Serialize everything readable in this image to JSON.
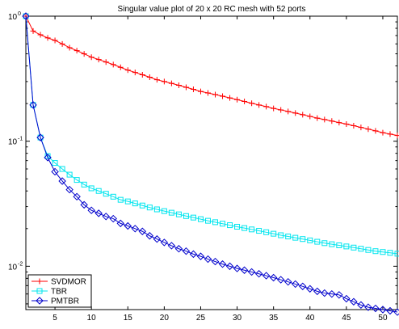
{
  "chart_data": {
    "type": "line",
    "title": "Singular value plot of 20 x 20 RC mesh with 52 ports",
    "xlabel": "",
    "ylabel": "",
    "xlim": [
      1,
      52
    ],
    "ylim": [
      0.0045,
      1
    ],
    "y_scale": "log",
    "grid": false,
    "legend_position": "bottom-left",
    "x_ticks": [
      5,
      10,
      15,
      20,
      25,
      30,
      35,
      40,
      45,
      50
    ],
    "y_ticks": [
      {
        "value": 0.01,
        "base": "10",
        "exp": "-2"
      },
      {
        "value": 0.1,
        "base": "10",
        "exp": "-1"
      },
      {
        "value": 1,
        "base": "10",
        "exp": "0"
      }
    ],
    "x": [
      1,
      2,
      3,
      4,
      5,
      6,
      7,
      8,
      9,
      10,
      11,
      12,
      13,
      14,
      15,
      16,
      17,
      18,
      19,
      20,
      21,
      22,
      23,
      24,
      25,
      26,
      27,
      28,
      29,
      30,
      31,
      32,
      33,
      34,
      35,
      36,
      37,
      38,
      39,
      40,
      41,
      42,
      43,
      44,
      45,
      46,
      47,
      48,
      49,
      50,
      51,
      52
    ],
    "series": [
      {
        "name": "SVDMOR",
        "color": "#ff0000",
        "marker": "plus",
        "values": [
          1.0,
          0.76,
          0.71,
          0.67,
          0.64,
          0.6,
          0.56,
          0.53,
          0.5,
          0.47,
          0.45,
          0.43,
          0.41,
          0.39,
          0.37,
          0.355,
          0.34,
          0.325,
          0.31,
          0.3,
          0.29,
          0.28,
          0.27,
          0.26,
          0.25,
          0.243,
          0.236,
          0.229,
          0.222,
          0.215,
          0.208,
          0.201,
          0.195,
          0.189,
          0.183,
          0.178,
          0.173,
          0.168,
          0.163,
          0.158,
          0.153,
          0.149,
          0.145,
          0.141,
          0.137,
          0.133,
          0.129,
          0.125,
          0.121,
          0.117,
          0.114,
          0.111
        ]
      },
      {
        "name": "TBR",
        "color": "#00e5ee",
        "marker": "square",
        "values": [
          1.0,
          0.195,
          0.107,
          0.076,
          0.067,
          0.06,
          0.054,
          0.049,
          0.045,
          0.042,
          0.04,
          0.038,
          0.036,
          0.034,
          0.033,
          0.0318,
          0.0306,
          0.0295,
          0.0285,
          0.0276,
          0.0268,
          0.026,
          0.0252,
          0.0245,
          0.0238,
          0.0231,
          0.0225,
          0.0219,
          0.0213,
          0.0207,
          0.0202,
          0.0197,
          0.0192,
          0.0187,
          0.0182,
          0.0177,
          0.0173,
          0.0169,
          0.0165,
          0.0161,
          0.0157,
          0.0153,
          0.015,
          0.0147,
          0.0144,
          0.0141,
          0.0138,
          0.0135,
          0.0132,
          0.013,
          0.0128,
          0.0126
        ]
      },
      {
        "name": "PMTBR",
        "color": "#0000cc",
        "marker": "diamond",
        "values": [
          1.0,
          0.195,
          0.107,
          0.074,
          0.057,
          0.048,
          0.041,
          0.036,
          0.031,
          0.028,
          0.0265,
          0.025,
          0.024,
          0.022,
          0.021,
          0.02,
          0.019,
          0.0175,
          0.0165,
          0.0155,
          0.0146,
          0.0138,
          0.0132,
          0.0125,
          0.012,
          0.0114,
          0.0109,
          0.0104,
          0.01,
          0.0096,
          0.0093,
          0.009,
          0.0087,
          0.0084,
          0.0081,
          0.0078,
          0.0075,
          0.0072,
          0.0069,
          0.0066,
          0.0063,
          0.0061,
          0.006,
          0.0059,
          0.0055,
          0.0052,
          0.0049,
          0.0047,
          0.0046,
          0.0045,
          0.0044,
          0.0043
        ]
      }
    ]
  }
}
